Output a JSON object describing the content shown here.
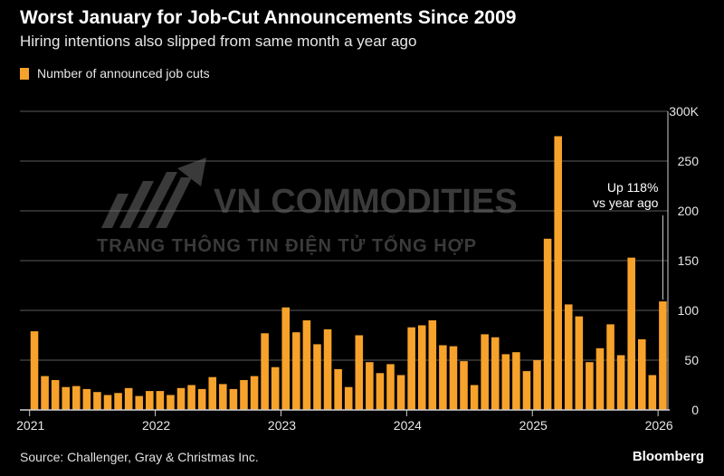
{
  "title": "Worst January for Job-Cut Announcements Since 2009",
  "subtitle": "Hiring intentions also slipped from same month a year ago",
  "source": "Source: Challenger, Gray & Christmas Inc.",
  "brand": "Bloomberg",
  "watermark": {
    "name": "VN COMMODITIES",
    "tagline": "TRANG THÔNG TIN ĐIỆN TỬ TỔNG HỢP"
  },
  "colors": {
    "bar": "#f7a22b",
    "background": "#000000",
    "grid": "#5a5a5a",
    "axis": "#cfcfcf"
  },
  "chart_data": {
    "type": "bar",
    "title": "Worst January for Job-Cut Announcements Since 2009",
    "subtitle": "Hiring intentions also slipped from same month a year ago",
    "legend": [
      "Number of announced job cuts"
    ],
    "xlabel": "",
    "ylabel": "",
    "ylim": [
      0,
      300
    ],
    "yticks": [
      0,
      50,
      100,
      150,
      200,
      250,
      300
    ],
    "ytick_labels": [
      "0",
      "50",
      "100",
      "150",
      "200",
      "250",
      "300K"
    ],
    "xtick_labels": [
      "2021",
      "2022",
      "2023",
      "2024",
      "2025",
      "2026"
    ],
    "categories": [
      "2021-01",
      "2021-02",
      "2021-03",
      "2021-04",
      "2021-05",
      "2021-06",
      "2021-07",
      "2021-08",
      "2021-09",
      "2021-10",
      "2021-11",
      "2021-12",
      "2022-01",
      "2022-02",
      "2022-03",
      "2022-04",
      "2022-05",
      "2022-06",
      "2022-07",
      "2022-08",
      "2022-09",
      "2022-10",
      "2022-11",
      "2022-12",
      "2023-01",
      "2023-02",
      "2023-03",
      "2023-04",
      "2023-05",
      "2023-06",
      "2023-07",
      "2023-08",
      "2023-09",
      "2023-10",
      "2023-11",
      "2023-12",
      "2024-01",
      "2024-02",
      "2024-03",
      "2024-04",
      "2024-05",
      "2024-06",
      "2024-07",
      "2024-08",
      "2024-09",
      "2024-10",
      "2024-11",
      "2024-12",
      "2025-01",
      "2025-02",
      "2025-03",
      "2025-04",
      "2025-05",
      "2025-06",
      "2025-07",
      "2025-08",
      "2025-09",
      "2025-10",
      "2025-11",
      "2025-12",
      "2026-01"
    ],
    "values": [
      79,
      34,
      30,
      23,
      24,
      21,
      18,
      15,
      17,
      22,
      14,
      19,
      19,
      15,
      22,
      25,
      21,
      33,
      26,
      21,
      30,
      34,
      77,
      43,
      103,
      78,
      90,
      66,
      81,
      41,
      23,
      75,
      48,
      37,
      46,
      35,
      83,
      85,
      90,
      65,
      64,
      49,
      25,
      76,
      73,
      56,
      58,
      39,
      50,
      172,
      275,
      106,
      94,
      48,
      62,
      86,
      55,
      153,
      71,
      35,
      109
    ],
    "annotation": {
      "text_line1": "Up 118%",
      "text_line2": "vs year ago",
      "at": "2026-01"
    }
  }
}
